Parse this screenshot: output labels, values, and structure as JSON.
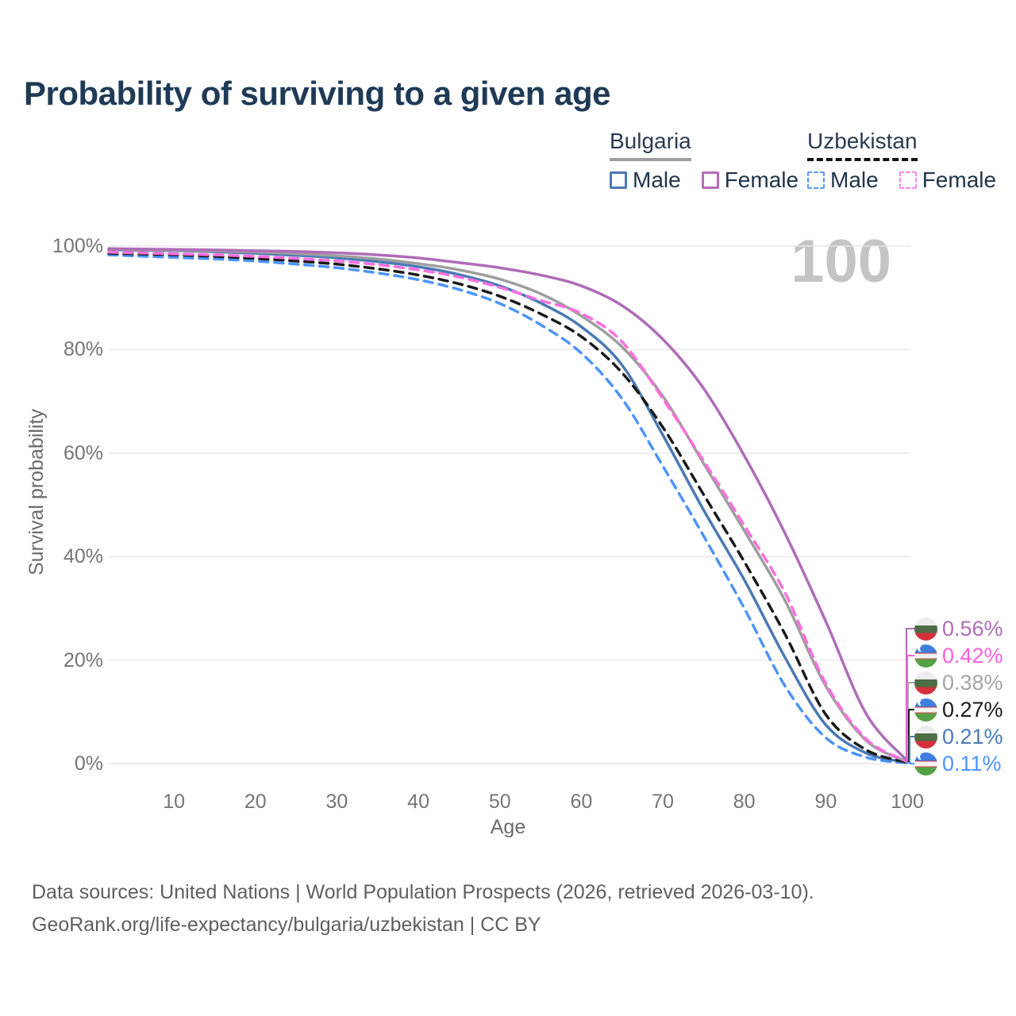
{
  "title": "Probability of surviving to a given age",
  "watermark": "100",
  "legend": {
    "groups": [
      {
        "country": "Bulgaria",
        "line_style": "solid",
        "line_color": "#9e9e9e",
        "items": [
          {
            "label": "Male",
            "color": "#4a7ab5"
          },
          {
            "label": "Female",
            "color": "#b56cb8"
          }
        ]
      },
      {
        "country": "Uzbekistan",
        "line_style": "dashed",
        "line_color": "#141414",
        "items": [
          {
            "label": "Male",
            "color": "#5b9bf8"
          },
          {
            "label": "Female",
            "color": "#ff85ec"
          }
        ]
      }
    ]
  },
  "axes": {
    "y_label": "Survival probability",
    "x_label": "Age",
    "y_ticks": [
      {
        "label": "100%",
        "value": 100
      },
      {
        "label": "80%",
        "value": 80
      },
      {
        "label": "60%",
        "value": 60
      },
      {
        "label": "40%",
        "value": 40
      },
      {
        "label": "20%",
        "value": 20
      },
      {
        "label": "0%",
        "value": 0
      }
    ],
    "x_ticks": [
      {
        "label": "10",
        "value": 10
      },
      {
        "label": "20",
        "value": 20
      },
      {
        "label": "30",
        "value": 30
      },
      {
        "label": "40",
        "value": 40
      },
      {
        "label": "50",
        "value": 50
      },
      {
        "label": "60",
        "value": 60
      },
      {
        "label": "70",
        "value": 70
      },
      {
        "label": "80",
        "value": 80
      },
      {
        "label": "90",
        "value": 90
      },
      {
        "label": "100",
        "value": 100
      }
    ]
  },
  "end_labels": [
    {
      "value": "0.56%",
      "color": "#b06cb8",
      "flag": "bg",
      "series": "Bulgaria Female"
    },
    {
      "value": "0.42%",
      "color": "#ff5fd9",
      "flag": "uz",
      "series": "Uzbekistan Female"
    },
    {
      "value": "0.38%",
      "color": "#a5a5a5",
      "flag": "bg",
      "series": "Bulgaria Average"
    },
    {
      "value": "0.27%",
      "color": "#1a1a1a",
      "flag": "uz",
      "series": "Uzbekistan Average"
    },
    {
      "value": "0.21%",
      "color": "#4a7ab5",
      "flag": "bg",
      "series": "Bulgaria Male"
    },
    {
      "value": "0.11%",
      "color": "#4d94ff",
      "flag": "uz",
      "series": "Uzbekistan Male"
    }
  ],
  "footer": {
    "line1": "Data sources: United Nations | World Population Prospects (2026, retrieved 2026-03-10).",
    "line2": "GeoRank.org/life-expectancy/bulgaria/uzbekistan | CC BY"
  },
  "chart_data": {
    "type": "line",
    "title": "Probability of surviving to a given age",
    "xlabel": "Age",
    "ylabel": "Survival probability",
    "xlim": [
      2,
      100
    ],
    "ylim": [
      0,
      100
    ],
    "grid": "horizontal",
    "legend_position": "top-right",
    "x": [
      2,
      5,
      10,
      15,
      20,
      25,
      30,
      35,
      40,
      45,
      50,
      55,
      60,
      65,
      70,
      75,
      80,
      85,
      90,
      95,
      100
    ],
    "series": [
      {
        "name": "Uzbekistan Male",
        "color": "#4d94ff",
        "dash": "dashed",
        "values": [
          98.3,
          98.1,
          97.8,
          97.5,
          97.1,
          96.5,
          95.8,
          94.8,
          93.5,
          91.6,
          88.9,
          84.8,
          79.3,
          70.5,
          57.5,
          44.0,
          30.0,
          15.0,
          5.0,
          1.2,
          0.11
        ]
      },
      {
        "name": "Bulgaria Male",
        "color": "#4a7ab5",
        "dash": "solid",
        "values": [
          99.3,
          99.2,
          99.1,
          98.9,
          98.6,
          98.2,
          97.7,
          97.0,
          96.0,
          94.5,
          92.3,
          89.0,
          84.4,
          77.0,
          63.5,
          49.0,
          35.5,
          20.5,
          7.5,
          2.0,
          0.21
        ]
      },
      {
        "name": "Uzbekistan Average",
        "color": "#1a1a1a",
        "dash": "dashed",
        "values": [
          98.6,
          98.5,
          98.3,
          98.0,
          97.6,
          97.1,
          96.5,
          95.6,
          94.4,
          92.7,
          90.3,
          86.9,
          82.5,
          75.5,
          65.0,
          52.0,
          39.0,
          25.0,
          9.5,
          2.6,
          0.27
        ]
      },
      {
        "name": "Bulgaria Average",
        "color": "#9e9e9e",
        "dash": "solid",
        "values": [
          99.4,
          99.3,
          99.2,
          99.05,
          98.85,
          98.55,
          98.1,
          97.5,
          96.6,
          95.4,
          93.6,
          90.8,
          86.5,
          80.5,
          71.0,
          58.0,
          45.0,
          31.5,
          15.0,
          4.4,
          0.38
        ]
      },
      {
        "name": "Uzbekistan Female",
        "color": "#ff6ee0",
        "dash": "dashed",
        "values": [
          98.8,
          98.7,
          98.5,
          98.3,
          98.0,
          97.6,
          97.1,
          96.4,
          95.4,
          94.0,
          92.0,
          89.5,
          87.0,
          81.5,
          70.5,
          58.5,
          46.0,
          33.0,
          15.5,
          4.7,
          0.42
        ]
      },
      {
        "name": "Bulgaria Female",
        "color": "#b06cb8",
        "dash": "solid",
        "values": [
          99.5,
          99.45,
          99.35,
          99.25,
          99.1,
          98.95,
          98.7,
          98.3,
          97.7,
          96.8,
          95.8,
          94.4,
          92.3,
          88.5,
          82.0,
          72.5,
          59.5,
          44.5,
          27.5,
          9.5,
          0.56
        ]
      }
    ]
  }
}
